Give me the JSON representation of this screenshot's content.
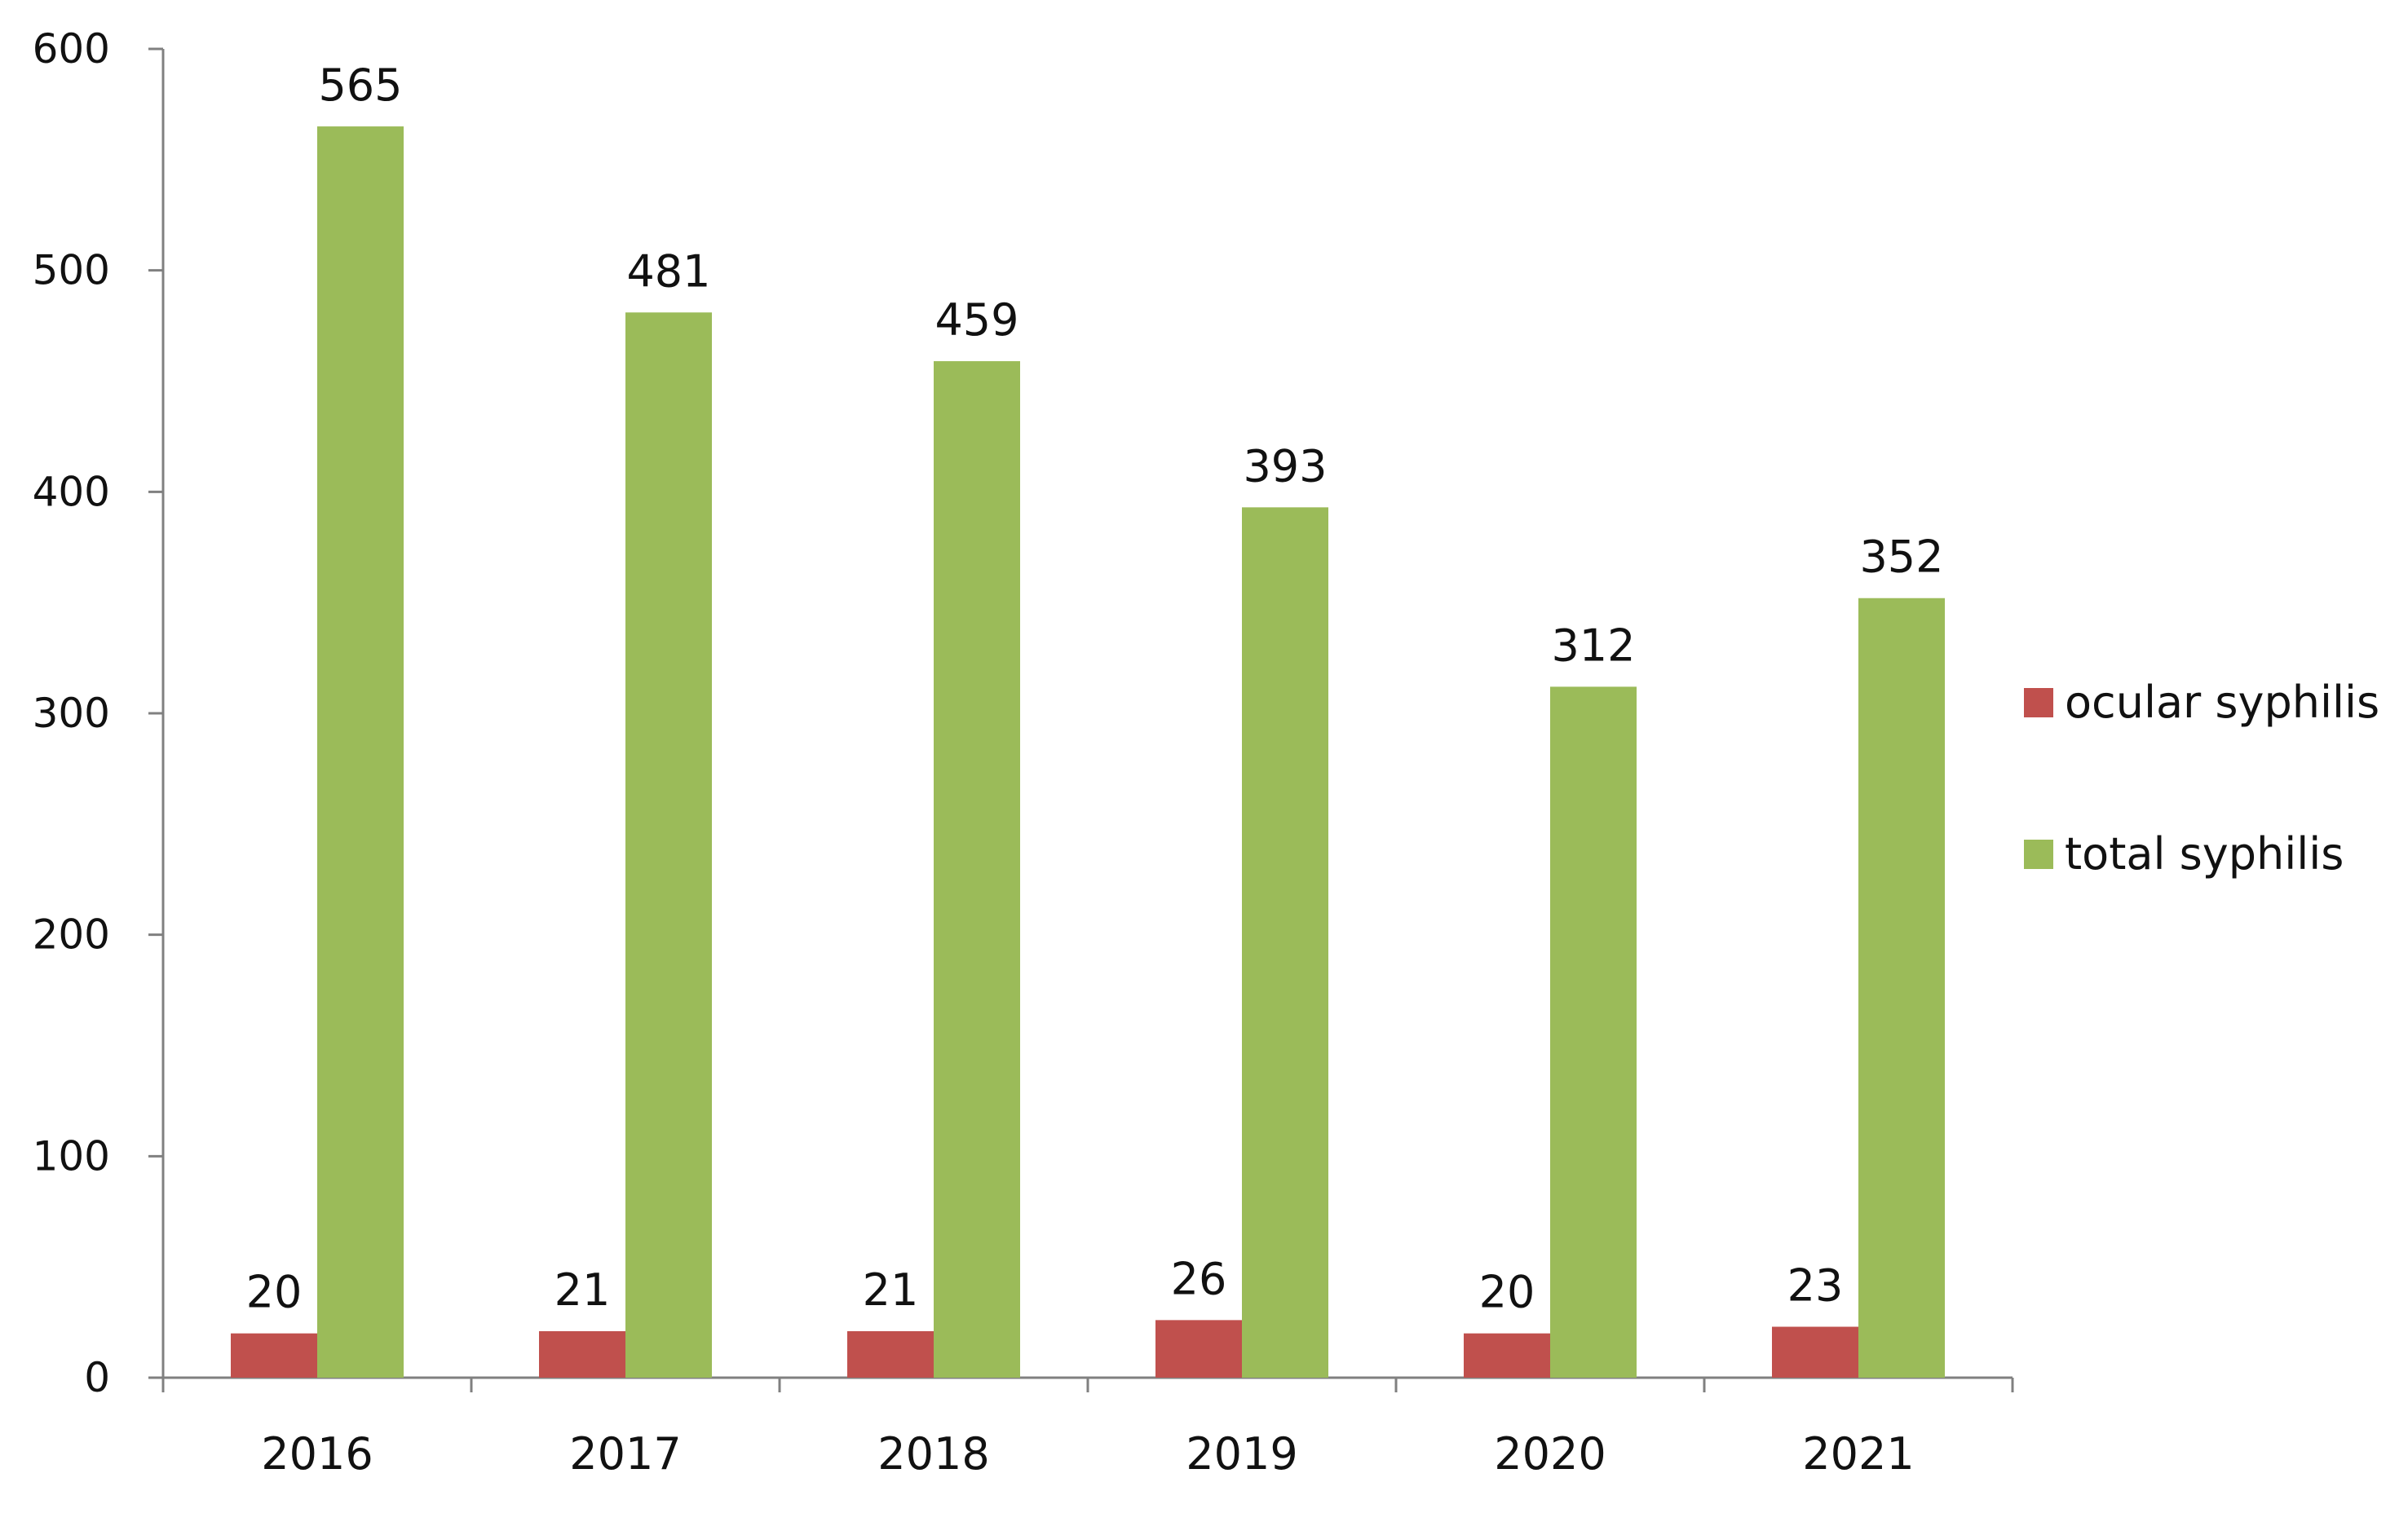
{
  "chart_data": {
    "type": "bar",
    "categories": [
      "2016",
      "2017",
      "2018",
      "2019",
      "2020",
      "2021"
    ],
    "series": [
      {
        "name": "ocular syphilis",
        "values": [
          20,
          21,
          21,
          26,
          20,
          23
        ],
        "color": "#c0504d"
      },
      {
        "name": "total syphilis",
        "values": [
          565,
          481,
          459,
          393,
          312,
          352
        ],
        "color": "#9bbb59"
      }
    ],
    "ylim": [
      0,
      600
    ],
    "yticks": [
      "0",
      "100",
      "200",
      "300",
      "400",
      "500",
      "600"
    ],
    "title": "",
    "xlabel": "",
    "ylabel": "",
    "grid": false,
    "legend_position": "right",
    "axis_color": "#808080"
  }
}
